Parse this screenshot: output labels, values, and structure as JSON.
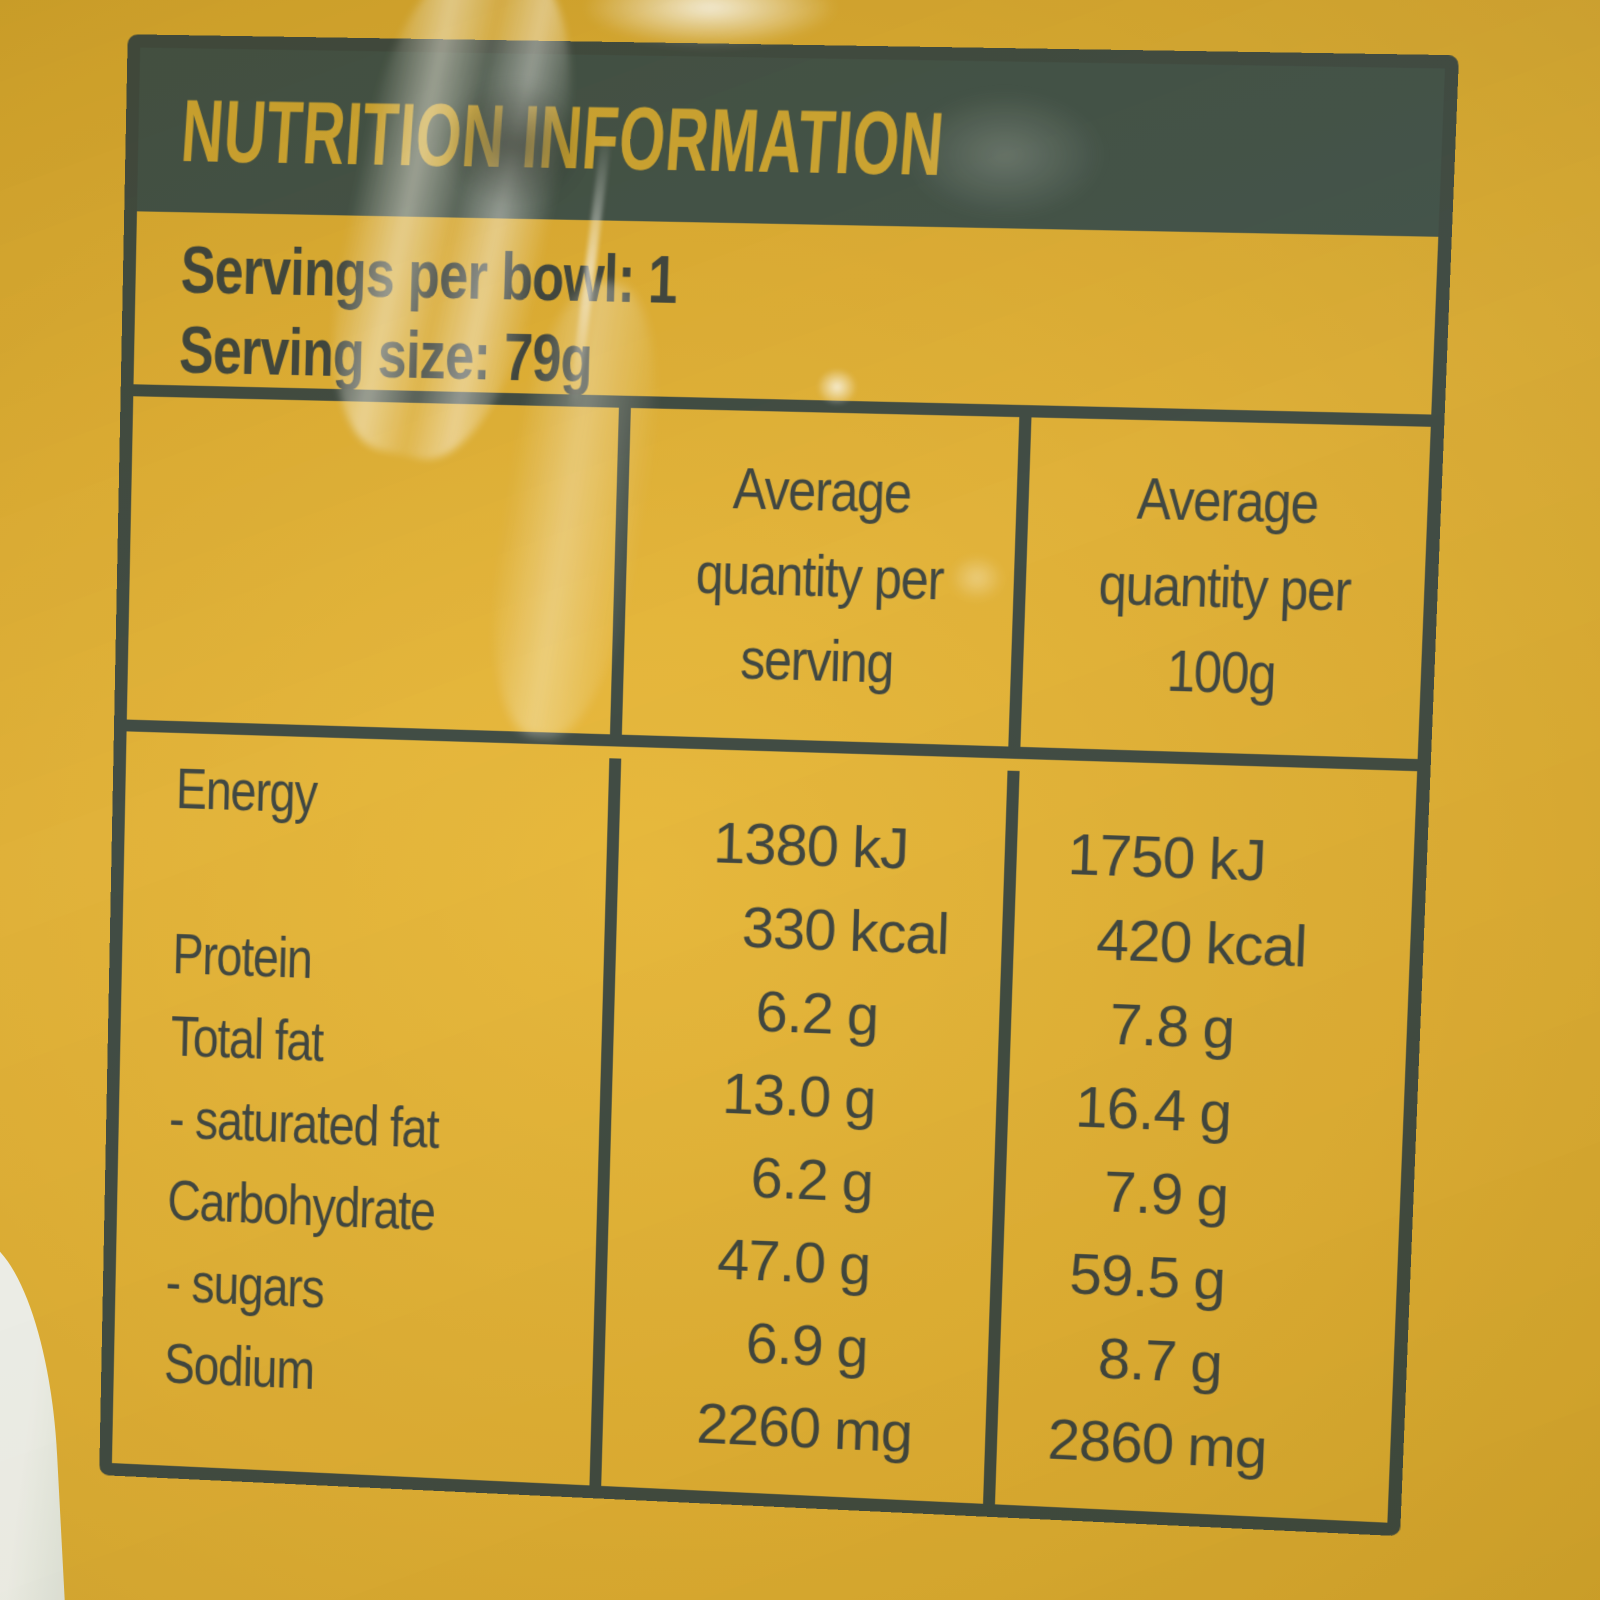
{
  "label": {
    "header": "NUTRITION INFORMATION",
    "servings_line": "Servings per bowl: 1",
    "serving_size_line": "Serving size: 79g",
    "table": {
      "col2_header": "Average\nquantity per\nserving",
      "col3_header": "Average\nquantity per\n100g",
      "rows": [
        {
          "label": "Energy",
          "sv": "1380",
          "su": "kJ",
          "hv": "1750",
          "hu": "kJ"
        },
        {
          "label": "",
          "sv": "330",
          "su": "kcal",
          "hv": "420",
          "hu": "kcal"
        },
        {
          "label": "Protein",
          "sv": "6.2",
          "su": "g",
          "hv": "7.8",
          "hu": "g"
        },
        {
          "label": "Total fat",
          "sv": "13.0",
          "su": "g",
          "hv": "16.4",
          "hu": "g"
        },
        {
          "label": "- saturated fat",
          "sv": "6.2",
          "su": "g",
          "hv": "7.9",
          "hu": "g"
        },
        {
          "label": "Carbohydrate",
          "sv": "47.0",
          "su": "g",
          "hv": "59.5",
          "hu": "g"
        },
        {
          "label": "- sugars",
          "sv": "6.9",
          "su": "g",
          "hv": "8.7",
          "hu": "g"
        },
        {
          "label": "Sodium",
          "sv": "2260",
          "su": "mg",
          "hv": "2860",
          "hu": "mg"
        }
      ]
    }
  },
  "colors": {
    "package_yellow": "#ddac30",
    "panel_line": "#3a463e",
    "header_bar": "#3d4e45",
    "header_text": "#cda42f",
    "body_text": "#3a413b",
    "package_edge_white": "#eef0ea"
  }
}
